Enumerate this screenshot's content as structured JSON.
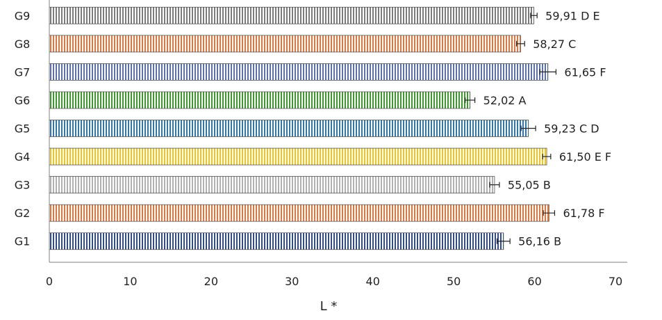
{
  "chart_data": {
    "type": "bar",
    "orientation": "horizontal",
    "categories": [
      "G1",
      "G2",
      "G3",
      "G4",
      "G5",
      "G6",
      "G7",
      "G8",
      "G9"
    ],
    "values": [
      56.16,
      61.78,
      55.05,
      61.5,
      59.23,
      52.02,
      61.65,
      58.27,
      59.91
    ],
    "errors": [
      0.8,
      0.7,
      0.6,
      0.5,
      0.9,
      0.6,
      1.0,
      0.5,
      0.4
    ],
    "labels": [
      "56,16 B",
      "61,78 F",
      "55,05 B",
      "61,50 E F",
      "59,23 C D",
      "52,02 A",
      "61,65 F",
      "58,27 C",
      "59,91 D E"
    ],
    "colors": [
      "#2f4a8f",
      "#e8743b",
      "#b0b0b0",
      "#f0c419",
      "#2e75b6",
      "#3a9a2a",
      "#5a6fb5",
      "#e8743b",
      "#7a7a7a"
    ],
    "xlabel": "L *",
    "xlim": [
      0,
      70
    ],
    "xticks": [
      "0",
      "10",
      "20",
      "30",
      "40",
      "50",
      "60",
      "70"
    ],
    "grid": false
  }
}
